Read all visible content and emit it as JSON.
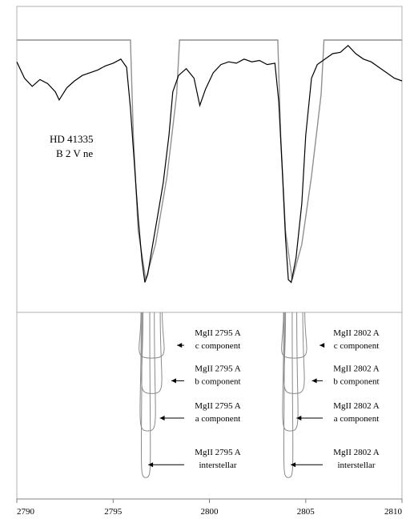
{
  "chart_data": {
    "type": "line",
    "title": "",
    "xlabel": "",
    "ylabel": "",
    "xlim": [
      2790,
      2810
    ],
    "ylim": [
      -1.0,
      1.0
    ],
    "grid": false,
    "x_ticks": [
      2790,
      2795,
      2800,
      2805,
      2810
    ],
    "x_tick_labels": [
      "2790",
      "2795",
      "2800",
      "2805",
      "2810"
    ],
    "star_label": [
      "HD 41335",
      "B 2 V ne"
    ],
    "series": [
      {
        "role": "observed",
        "color": "#000000",
        "x": [
          2790.0,
          2790.4,
          2790.8,
          2791.2,
          2791.6,
          2792.0,
          2792.2,
          2792.6,
          2793.0,
          2793.4,
          2793.8,
          2794.2,
          2794.6,
          2795.0,
          2795.4,
          2795.7,
          2795.9,
          2796.1,
          2796.3,
          2796.5,
          2796.65,
          2796.8,
          2797.0,
          2797.3,
          2797.6,
          2797.9,
          2798.1,
          2798.4,
          2798.8,
          2799.2,
          2799.5,
          2799.8,
          2800.2,
          2800.6,
          2801.0,
          2801.4,
          2801.8,
          2802.2,
          2802.6,
          2803.0,
          2803.4,
          2803.6,
          2803.8,
          2803.95,
          2804.1,
          2804.25,
          2804.5,
          2804.8,
          2805.0,
          2805.3,
          2805.6,
          2806.0,
          2806.4,
          2806.8,
          2807.2,
          2807.6,
          2808.0,
          2808.4,
          2808.8,
          2809.2,
          2809.6,
          2810.0
        ],
        "y": [
          0.84,
          0.72,
          0.66,
          0.71,
          0.68,
          0.62,
          0.56,
          0.65,
          0.7,
          0.74,
          0.76,
          0.78,
          0.81,
          0.83,
          0.86,
          0.8,
          0.5,
          0.1,
          -0.3,
          -0.62,
          -0.78,
          -0.72,
          -0.55,
          -0.3,
          -0.05,
          0.3,
          0.62,
          0.74,
          0.79,
          0.72,
          0.52,
          0.64,
          0.76,
          0.82,
          0.84,
          0.83,
          0.86,
          0.84,
          0.85,
          0.82,
          0.83,
          0.55,
          0.0,
          -0.45,
          -0.76,
          -0.78,
          -0.6,
          -0.2,
          0.3,
          0.72,
          0.82,
          0.86,
          0.9,
          0.91,
          0.96,
          0.9,
          0.86,
          0.84,
          0.8,
          0.76,
          0.72,
          0.7
        ]
      },
      {
        "role": "model-continuum",
        "color": "#909090",
        "x": [
          2790.0,
          2795.9,
          2796.05,
          2796.3,
          2796.7,
          2797.2,
          2797.8,
          2798.3,
          2798.45,
          2803.55,
          2803.7,
          2803.95,
          2804.3,
          2804.8,
          2805.3,
          2805.8,
          2805.95,
          2810.0
        ],
        "y": [
          1.0,
          1.0,
          0.3,
          -0.4,
          -0.76,
          -0.5,
          0.0,
          0.6,
          1.0,
          1.0,
          0.3,
          -0.4,
          -0.76,
          -0.5,
          0.0,
          0.6,
          1.0,
          1.0
        ]
      }
    ],
    "components": [
      {
        "label_line1": "MgII 2795 A",
        "label_line2": "c component",
        "center": 2797.0,
        "level": 0.245,
        "ref_x": 2798.2
      },
      {
        "label_line1": "MgII 2795 A",
        "label_line2": "b component",
        "center": 2797.0,
        "level": 0.435,
        "ref_x": 2797.9
      },
      {
        "label_line1": "MgII 2795 A",
        "label_line2": "a component",
        "center": 2796.8,
        "level": 0.635,
        "ref_x": 2797.3
      },
      {
        "label_line1": "MgII 2795 A",
        "label_line2": "interstellar",
        "center": 2796.7,
        "level": 0.885,
        "ref_x": 2796.7
      },
      {
        "label_line1": "MgII 2802 A",
        "label_line2": "c component",
        "center": 2804.4,
        "level": 0.245,
        "ref_x": 2805.6
      },
      {
        "label_line1": "MgII 2802 A",
        "label_line2": "b component",
        "center": 2804.4,
        "level": 0.435,
        "ref_x": 2805.2
      },
      {
        "label_line1": "MgII 2802 A",
        "label_line2": "a component",
        "center": 2804.2,
        "level": 0.635,
        "ref_x": 2804.4
      },
      {
        "label_line1": "MgII 2802 A",
        "label_line2": "interstellar",
        "center": 2804.1,
        "level": 0.885,
        "ref_x": 2804.1
      }
    ]
  }
}
